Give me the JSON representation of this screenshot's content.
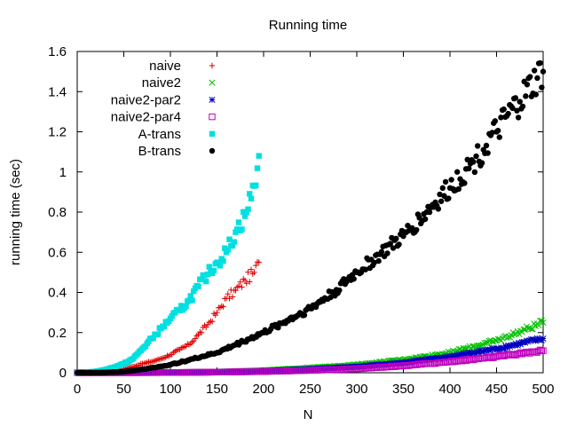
{
  "chart_data": {
    "type": "scatter",
    "title": "Running time",
    "xlabel": "N",
    "ylabel": "running time (sec)",
    "xlim": [
      0,
      500
    ],
    "ylim": [
      0,
      1.6
    ],
    "x_ticks": [
      "0",
      "50",
      "100",
      "150",
      "200",
      "250",
      "300",
      "350",
      "400",
      "450",
      "500"
    ],
    "y_ticks": [
      "0",
      "0.2",
      "0.4",
      "0.6",
      "0.8",
      "1",
      "1.2",
      "1.4",
      "1.6"
    ],
    "grid": false,
    "legend_position": "top-left",
    "series": [
      {
        "name": "naive",
        "color": "#e00000",
        "marker": "plus",
        "x": [
          0,
          10,
          20,
          30,
          40,
          50,
          60,
          70,
          80,
          90,
          100,
          110,
          120,
          130,
          140,
          150,
          160,
          170,
          180,
          190,
          195
        ],
        "y": [
          0,
          0.001,
          0.003,
          0.006,
          0.011,
          0.019,
          0.03,
          0.045,
          0.055,
          0.07,
          0.09,
          0.115,
          0.14,
          0.19,
          0.24,
          0.3,
          0.37,
          0.41,
          0.46,
          0.5,
          0.55
        ]
      },
      {
        "name": "naive2",
        "color": "#00c000",
        "marker": "cross",
        "x": [
          0,
          50,
          100,
          150,
          200,
          250,
          300,
          350,
          400,
          450,
          500
        ],
        "y": [
          0,
          0.0005,
          0.002,
          0.005,
          0.012,
          0.025,
          0.04,
          0.065,
          0.1,
          0.16,
          0.25
        ]
      },
      {
        "name": "naive2-par2",
        "color": "#0000c0",
        "marker": "star",
        "x": [
          0,
          50,
          100,
          150,
          200,
          250,
          300,
          350,
          400,
          450,
          500
        ],
        "y": [
          0,
          0.0004,
          0.0015,
          0.004,
          0.009,
          0.018,
          0.03,
          0.05,
          0.08,
          0.12,
          0.17
        ]
      },
      {
        "name": "naive2-par4",
        "color": "#c000c0",
        "marker": "square-open",
        "x": [
          0,
          50,
          100,
          150,
          200,
          250,
          300,
          350,
          400,
          450,
          500
        ],
        "y": [
          0,
          0.0003,
          0.001,
          0.003,
          0.006,
          0.012,
          0.02,
          0.035,
          0.055,
          0.08,
          0.11
        ]
      },
      {
        "name": "A-trans",
        "color": "#00e0e0",
        "marker": "square-filled",
        "x": [
          0,
          10,
          20,
          30,
          40,
          50,
          60,
          70,
          80,
          90,
          100,
          110,
          120,
          130,
          140,
          150,
          160,
          170,
          180,
          190,
          195
        ],
        "y": [
          0,
          0.002,
          0.006,
          0.015,
          0.028,
          0.045,
          0.07,
          0.12,
          0.17,
          0.22,
          0.27,
          0.31,
          0.36,
          0.43,
          0.49,
          0.55,
          0.6,
          0.7,
          0.78,
          0.93,
          1.08
        ]
      },
      {
        "name": "B-trans",
        "color": "#000000",
        "marker": "circle-filled",
        "x": [
          0,
          25,
          50,
          75,
          100,
          125,
          150,
          175,
          200,
          225,
          250,
          275,
          300,
          325,
          350,
          375,
          400,
          425,
          450,
          475,
          500
        ],
        "y": [
          0,
          0.001,
          0.005,
          0.02,
          0.04,
          0.07,
          0.1,
          0.15,
          0.2,
          0.26,
          0.32,
          0.4,
          0.5,
          0.59,
          0.68,
          0.8,
          0.92,
          1.05,
          1.2,
          1.35,
          1.5
        ]
      }
    ]
  }
}
